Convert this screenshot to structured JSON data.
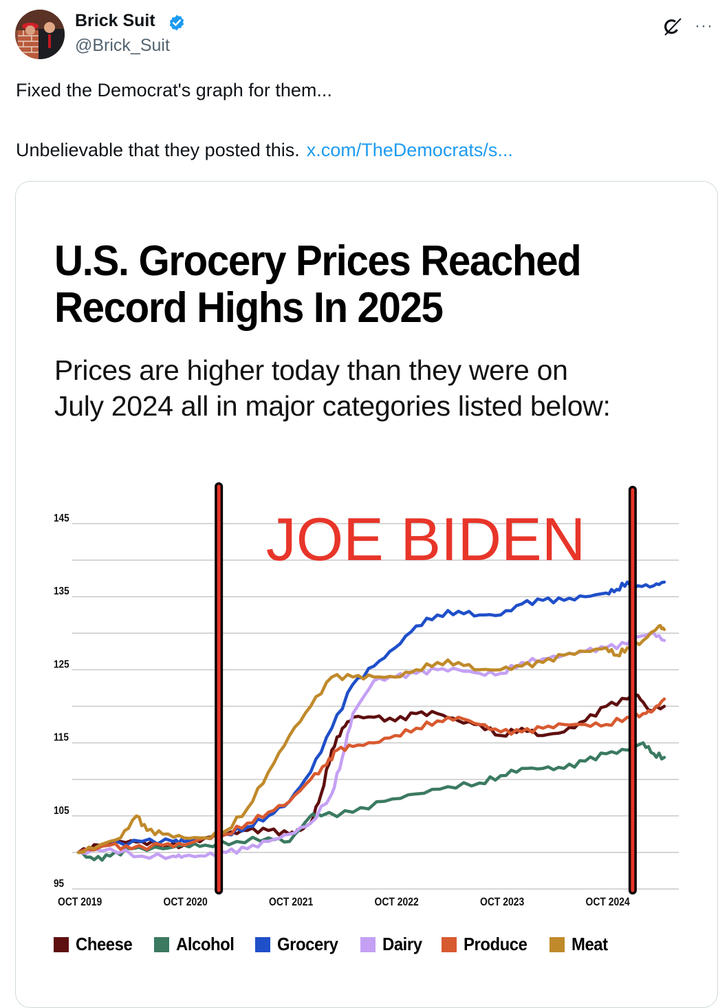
{
  "post": {
    "author": {
      "display_name": "Brick Suit",
      "handle": "@Brick_Suit",
      "verified": true,
      "avatar_icon": "avatar-photo"
    },
    "actions": {
      "grok_icon": "grok-icon",
      "more_icon": "more-horizontal-icon",
      "more_label": "···"
    },
    "text_line1": "Fixed the Democrat's graph for them...",
    "text_line2": "Unbelievable that they posted this.",
    "link_text": "x.com/TheDemocrats/s..."
  },
  "colors": {
    "accent_link": "#1d9bf0",
    "verified": "#1d9bf0",
    "annotation_red": "#e8352a",
    "gridline": "#c8c8c8"
  },
  "chart_data": {
    "type": "line",
    "title_line1": "U.S. Grocery Prices Reached",
    "title_line2": "Record Highs In 2025",
    "subtitle_line1": "Prices are higher today than they were on",
    "subtitle_line2": "July 2024 all in major categories listed below:",
    "xlabel": "",
    "ylabel": "",
    "x_unit": "years since Oct 2019",
    "xlim": [
      -0.05,
      5.6
    ],
    "ylim": [
      95,
      145
    ],
    "y_ticks": [
      95,
      105,
      115,
      125,
      135,
      145
    ],
    "y_gridlines": [
      95,
      100,
      105,
      110,
      115,
      120,
      125,
      130,
      135,
      140,
      145
    ],
    "x_ticks": [
      {
        "x": 0,
        "label": "OCT 2019"
      },
      {
        "x": 1,
        "label": "OCT 2020"
      },
      {
        "x": 2,
        "label": "OCT 2021"
      },
      {
        "x": 3,
        "label": "OCT 2022"
      },
      {
        "x": 4,
        "label": "OCT 2023"
      },
      {
        "x": 5,
        "label": "OCT 2024"
      }
    ],
    "grid": true,
    "legend_position": "bottom",
    "annotation": {
      "text": "JOE BIDEN",
      "start_x": 1.33,
      "end_x": 5.25,
      "color": "#e8352a"
    },
    "series": [
      {
        "name": "Cheese",
        "color": "#5e0f0f",
        "x": [
          0,
          0.2,
          0.4,
          0.6,
          0.8,
          1.0,
          1.2,
          1.4,
          1.6,
          1.8,
          2.0,
          2.1,
          2.2,
          2.3,
          2.4,
          2.5,
          2.6,
          2.8,
          3.0,
          3.2,
          3.4,
          3.6,
          3.8,
          4.0,
          4.2,
          4.4,
          4.6,
          4.8,
          5.0,
          5.2,
          5.3,
          5.4,
          5.55
        ],
        "y": [
          100,
          101,
          101.5,
          101.5,
          101,
          101,
          102,
          102.5,
          103,
          103,
          102.5,
          103,
          104,
          108,
          114,
          117,
          118.5,
          118.5,
          118,
          119,
          119,
          118,
          117.5,
          116,
          117,
          116,
          116.5,
          118,
          120,
          121,
          121.5,
          119.5,
          120
        ]
      },
      {
        "name": "Alcohol",
        "color": "#3b7a61",
        "x": [
          0,
          0.15,
          0.3,
          0.5,
          0.8,
          1.0,
          1.2,
          1.5,
          1.8,
          2.0,
          2.2,
          2.3,
          2.6,
          2.9,
          3.2,
          3.5,
          3.8,
          4.0,
          4.2,
          4.4,
          4.6,
          4.8,
          5.0,
          5.2,
          5.35,
          5.45,
          5.55
        ],
        "y": [
          100,
          99,
          99.5,
          100.5,
          100.5,
          101,
          101,
          101.5,
          102,
          101.5,
          105,
          105,
          105.5,
          107,
          108,
          109,
          109.5,
          110.5,
          111.5,
          111.5,
          111.5,
          112.5,
          113.5,
          114,
          115,
          113.5,
          113
        ]
      },
      {
        "name": "Grocery",
        "color": "#1f4fc9",
        "x": [
          0,
          0.3,
          0.6,
          0.9,
          1.0,
          1.2,
          1.4,
          1.6,
          1.8,
          2.0,
          2.2,
          2.4,
          2.6,
          2.8,
          3.0,
          3.2,
          3.4,
          3.6,
          3.8,
          4.0,
          4.2,
          4.4,
          4.6,
          4.8,
          5.0,
          5.1,
          5.2,
          5.3,
          5.45,
          5.55
        ],
        "y": [
          100,
          101,
          101.5,
          101.5,
          101.5,
          102,
          102.5,
          103.5,
          105,
          107,
          111,
          117,
          123,
          125.5,
          128,
          131,
          132.5,
          133,
          132.5,
          132.5,
          134,
          134.5,
          134.5,
          135,
          135.5,
          136,
          137,
          136.5,
          136.5,
          137
        ]
      },
      {
        "name": "Dairy",
        "color": "#c4a0f4",
        "x": [
          0,
          0.3,
          0.6,
          0.9,
          1.0,
          1.2,
          1.4,
          1.6,
          1.8,
          2.0,
          2.2,
          2.4,
          2.5,
          2.6,
          2.8,
          3.0,
          3.2,
          3.4,
          3.6,
          3.8,
          4.0,
          4.2,
          4.4,
          4.6,
          4.8,
          5.0,
          5.2,
          5.3,
          5.45,
          5.55
        ],
        "y": [
          100,
          100.5,
          99.5,
          99.5,
          99.5,
          99.5,
          100,
          100.5,
          101.5,
          102.5,
          104,
          108,
          113,
          119,
          123.5,
          124,
          124.5,
          125,
          125,
          124.5,
          124.5,
          126,
          126.5,
          127,
          127.5,
          128,
          128.5,
          129.5,
          130,
          129
        ]
      },
      {
        "name": "Produce",
        "color": "#d85a30",
        "x": [
          0,
          0.3,
          0.5,
          0.8,
          1.0,
          1.2,
          1.4,
          1.6,
          1.8,
          2.0,
          2.2,
          2.35,
          2.45,
          2.6,
          2.8,
          3.0,
          3.2,
          3.4,
          3.6,
          3.8,
          4.0,
          4.2,
          4.4,
          4.6,
          4.8,
          5.0,
          5.2,
          5.35,
          5.45,
          5.55
        ],
        "y": [
          100,
          101,
          100.5,
          101,
          101,
          102,
          102.5,
          104,
          105.5,
          107,
          110,
          112,
          114,
          114.5,
          115,
          116,
          117,
          118,
          118.5,
          117.5,
          116.5,
          116.5,
          117,
          117.5,
          117.5,
          117.5,
          118.5,
          119,
          119.5,
          121
        ]
      },
      {
        "name": "Meat",
        "color": "#c08a2b",
        "x": [
          0,
          0.2,
          0.4,
          0.55,
          0.65,
          0.8,
          1.0,
          1.2,
          1.4,
          1.6,
          1.8,
          2.0,
          2.2,
          2.4,
          2.6,
          2.8,
          3.0,
          3.2,
          3.4,
          3.6,
          3.8,
          4.0,
          4.2,
          4.4,
          4.6,
          4.8,
          5.0,
          5.1,
          5.2,
          5.35,
          5.5,
          5.55
        ],
        "y": [
          100,
          101,
          102,
          105,
          103,
          102.5,
          102,
          102,
          103,
          106,
          111,
          116,
          120,
          124,
          124,
          124,
          124,
          125,
          126,
          126,
          125,
          125,
          125.5,
          126,
          127,
          127.5,
          128,
          127,
          128,
          129,
          131,
          130.5
        ]
      }
    ]
  }
}
